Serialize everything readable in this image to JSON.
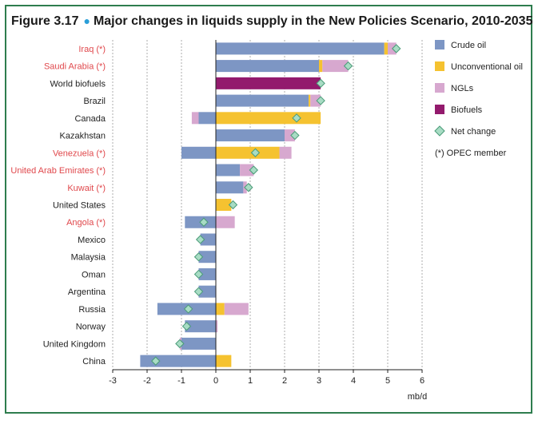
{
  "figure": {
    "number": "Figure 3.17",
    "title": "Major changes in liquids supply in the New Policies Scenario, 2010-2035"
  },
  "colors": {
    "crude_oil": "#7d96c4",
    "unconventional_oil": "#f5c230",
    "ngls": "#d7a8cf",
    "biofuels": "#931a6d",
    "net_change": "#a8dcc4",
    "net_change_stroke": "#4a9b78",
    "opec": "#e0484c",
    "frame": "#2e7d4e"
  },
  "chart_data": {
    "type": "bar",
    "orientation": "horizontal",
    "stacked": true,
    "xlabel": "mb/d",
    "xlim": [
      -3,
      6
    ],
    "xticks": [
      -3,
      -2,
      -1,
      0,
      1,
      2,
      3,
      4,
      5,
      6
    ],
    "grid": "vertical dashed",
    "legend_position": "right",
    "opec_note": "(*) OPEC member",
    "categories": [
      "Iraq (*)",
      "Saudi Arabia (*)",
      "World biofuels",
      "Brazil",
      "Canada",
      "Kazakhstan",
      "Venezuela (*)",
      "United Arab Emirates (*)",
      "Kuwait (*)",
      "United States",
      "Angola (*)",
      "Mexico",
      "Malaysia",
      "Oman",
      "Argentina",
      "Russia",
      "Norway",
      "United Kingdom",
      "China"
    ],
    "opec": [
      true,
      true,
      false,
      false,
      false,
      false,
      true,
      true,
      true,
      false,
      true,
      false,
      false,
      false,
      false,
      false,
      false,
      false,
      false
    ],
    "series": [
      {
        "name": "Crude oil",
        "key": "crude_oil",
        "values": [
          4.9,
          3.0,
          0,
          2.7,
          -0.5,
          2.0,
          -1.0,
          0.7,
          0.8,
          0,
          -0.9,
          -0.45,
          -0.5,
          -0.5,
          -0.5,
          -1.7,
          -0.9,
          -1.0,
          -2.2
        ]
      },
      {
        "name": "Unconventional oil",
        "key": "unconventional_oil",
        "values": [
          0.1,
          0.1,
          0,
          0.05,
          3.05,
          0,
          1.85,
          0,
          0,
          0.45,
          0,
          0,
          0,
          0,
          0,
          0.25,
          0,
          0,
          0.45
        ]
      },
      {
        "name": "NGLs",
        "key": "ngls",
        "values": [
          0.25,
          0.75,
          0,
          0.3,
          -0.2,
          0.3,
          0.35,
          0.4,
          0.1,
          0,
          0.55,
          0,
          0,
          0,
          0,
          0.7,
          0.05,
          -0.05,
          0
        ]
      },
      {
        "name": "Biofuels",
        "key": "biofuels",
        "values": [
          0,
          0,
          3.05,
          0,
          0,
          0,
          0,
          0,
          0,
          0,
          0,
          0,
          0,
          0,
          0,
          0,
          0,
          0,
          0
        ]
      }
    ],
    "net_change": {
      "name": "Net change",
      "values": [
        5.25,
        3.85,
        3.05,
        3.05,
        2.35,
        2.3,
        1.15,
        1.1,
        0.95,
        0.5,
        -0.35,
        -0.45,
        -0.5,
        -0.5,
        -0.5,
        -0.8,
        -0.85,
        -1.05,
        -1.75
      ]
    }
  }
}
